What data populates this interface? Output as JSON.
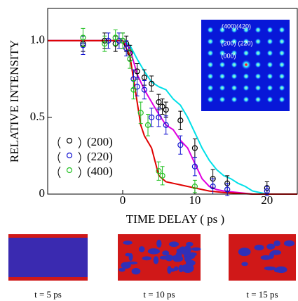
{
  "chart_data": {
    "type": "scatter",
    "x_label": "TIME DELAY  ( ps )",
    "y_label": "RELATIVE INTENSITY",
    "xlim": [
      -10.4,
      24.2
    ],
    "ylim": [
      0,
      1.21
    ],
    "xticks": [
      0,
      10,
      20
    ],
    "yticks": [
      0,
      {
        "value": 0.5,
        "label": "0.5"
      },
      {
        "value": 1,
        "label": "1.0"
      }
    ],
    "series": [
      {
        "name": "(200)",
        "color": "#000000",
        "x": [
          -5.5,
          -2.5,
          -1,
          0,
          0.5,
          1,
          2,
          3,
          4,
          5,
          5.5,
          6,
          8,
          10,
          12.5,
          14.5,
          20
        ],
        "values": [
          0.98,
          1.0,
          0.98,
          1.0,
          0.98,
          0.92,
          0.8,
          0.76,
          0.72,
          0.6,
          0.57,
          0.55,
          0.48,
          0.3,
          0.1,
          0.07,
          0.04
        ],
        "errors": [
          0.05,
          0.05,
          0.05,
          0.05,
          0.05,
          0.05,
          0.05,
          0.05,
          0.05,
          0.05,
          0.05,
          0.05,
          0.06,
          0.06,
          0.06,
          0.05,
          0.04
        ]
      },
      {
        "name": "(220)",
        "color": "#1010d0",
        "x": [
          -5.5,
          -2,
          -0.5,
          0.5,
          1.5,
          2,
          3,
          4,
          5,
          6,
          8,
          10,
          12.5,
          14.5,
          20
        ],
        "values": [
          0.97,
          1.0,
          1.0,
          0.95,
          0.75,
          0.7,
          0.68,
          0.5,
          0.5,
          0.45,
          0.32,
          0.18,
          0.05,
          0.03,
          0.02
        ],
        "errors": [
          0.06,
          0.05,
          0.05,
          0.05,
          0.06,
          0.06,
          0.06,
          0.06,
          0.06,
          0.06,
          0.06,
          0.06,
          0.05,
          0.04,
          0.03
        ]
      },
      {
        "name": "(400)",
        "color": "#20c020",
        "x": [
          -5.5,
          -2.5,
          -1,
          0,
          1,
          1.5,
          2.5,
          3.5,
          5,
          5.5,
          10
        ],
        "values": [
          1.02,
          0.98,
          1.02,
          1.0,
          0.88,
          0.68,
          0.53,
          0.45,
          0.15,
          0.12,
          0.05
        ],
        "errors": [
          0.06,
          0.05,
          0.05,
          0.05,
          0.06,
          0.06,
          0.07,
          0.07,
          0.06,
          0.06,
          0.04
        ]
      }
    ],
    "curves": [
      {
        "color": "#00e0e8",
        "x": [
          -10.4,
          0,
          1,
          2,
          3,
          4,
          5,
          6,
          7,
          8,
          9,
          10,
          11,
          12,
          13,
          14,
          15,
          16,
          17,
          18,
          20,
          24.2
        ],
        "values": [
          1,
          1,
          0.97,
          0.88,
          0.8,
          0.73,
          0.7,
          0.68,
          0.62,
          0.58,
          0.5,
          0.4,
          0.3,
          0.22,
          0.16,
          0.12,
          0.1,
          0.07,
          0.05,
          0.02,
          0,
          0
        ]
      },
      {
        "color": "#e000e0",
        "x": [
          -10.4,
          0,
          1,
          2,
          3,
          4,
          5,
          6,
          7,
          8,
          9,
          10,
          11,
          12,
          13,
          14,
          18,
          24.2
        ],
        "values": [
          1,
          1,
          0.95,
          0.78,
          0.68,
          0.6,
          0.52,
          0.45,
          0.42,
          0.35,
          0.3,
          0.2,
          0.1,
          0.05,
          0.03,
          0.02,
          0,
          0
        ]
      },
      {
        "color": "#e00000",
        "x": [
          -10.4,
          0,
          1,
          2,
          2.5,
          3,
          3.5,
          4,
          5,
          6,
          8,
          10,
          12,
          14,
          18,
          24.2
        ],
        "values": [
          1,
          1,
          0.9,
          0.6,
          0.45,
          0.38,
          0.34,
          0.3,
          0.12,
          0.08,
          0.06,
          0.04,
          0.02,
          0.01,
          0,
          0
        ]
      }
    ],
    "inset_labels": [
      "(400)(420)",
      "(200)",
      "(220)",
      "(000)"
    ],
    "snapshots": [
      "t = 5 ps",
      "t = 10 ps",
      "t = 15 ps"
    ]
  }
}
